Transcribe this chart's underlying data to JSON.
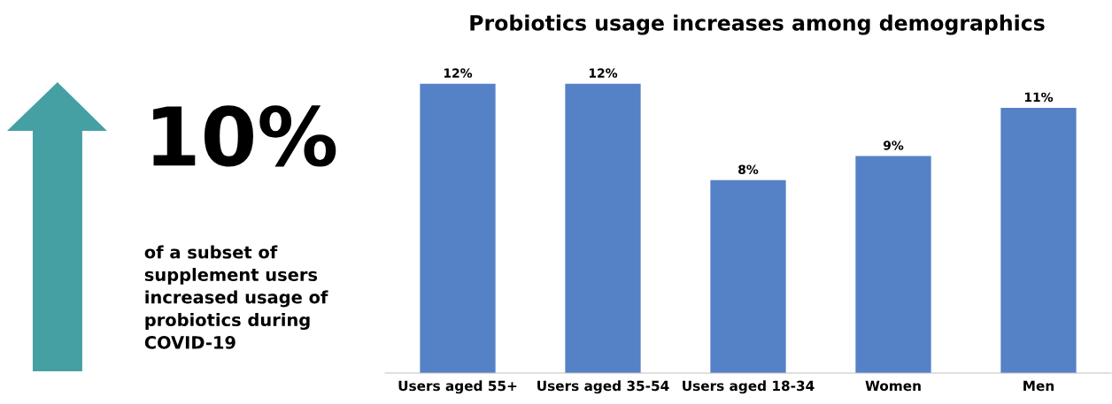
{
  "chart_data": [
    {
      "type": "other",
      "annotations": [
        "10%",
        "of a subset of\nsupplement users\nincreased usage of\nprobiotics during\nCOVID-19"
      ]
    },
    {
      "type": "bar",
      "title": "Probiotics usage increases among demographics",
      "categories": [
        "Users aged 55+",
        "Users aged 35-54",
        "Users aged 18-34",
        "Women",
        "Men"
      ],
      "values": [
        12,
        12,
        8,
        9,
        11
      ],
      "value_labels": [
        "12%",
        "12%",
        "8%",
        "9%",
        "11%"
      ],
      "color": "#5581c6",
      "grid": false,
      "legend": false
    }
  ]
}
